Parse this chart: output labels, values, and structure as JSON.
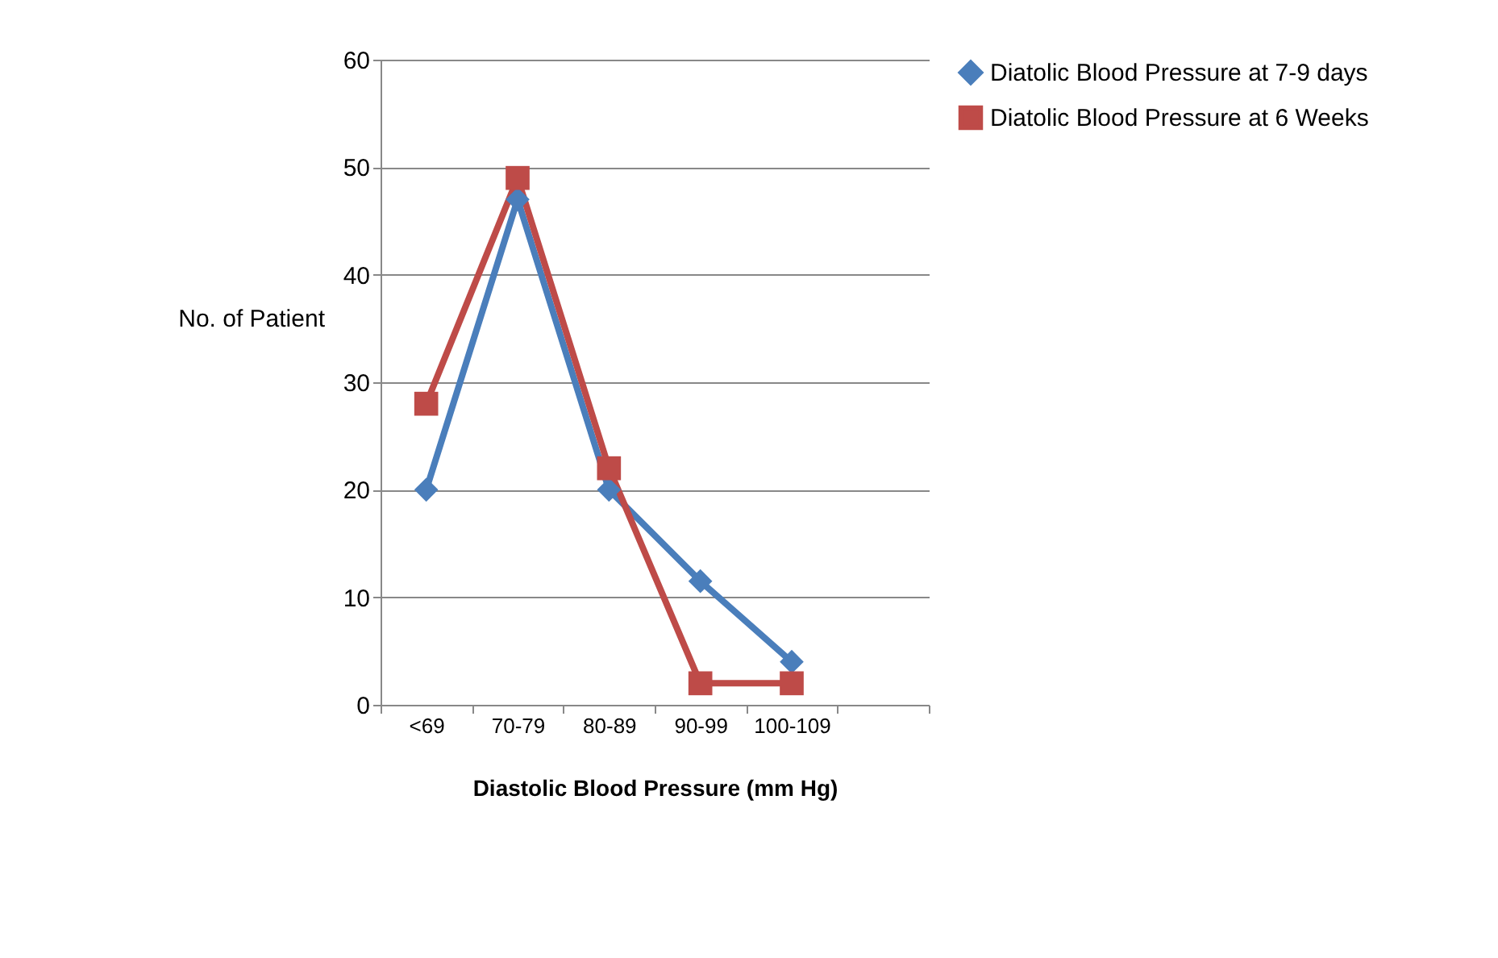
{
  "chart_data": {
    "type": "line",
    "xlabel": "Diastolic Blood Pressure (mm Hg)",
    "ylabel": "No. of Patient",
    "categories": [
      "<69",
      "70-79",
      "80-89",
      "90-99",
      "100-109",
      null
    ],
    "series": [
      {
        "name": "Diatolic Blood Pressure at 7-9 days",
        "color": "#4a7ebb",
        "marker": "diamond",
        "values": [
          20,
          47,
          20,
          11.5,
          4,
          null
        ]
      },
      {
        "name": "Diatolic Blood Pressure at 6 Weeks",
        "color": "#be4b48",
        "marker": "square",
        "values": [
          28,
          49,
          22,
          2,
          2,
          null
        ]
      }
    ],
    "ylim": [
      0,
      60
    ],
    "yticks": [
      0,
      10,
      20,
      30,
      40,
      50,
      60
    ],
    "grid": "y",
    "legend": "right",
    "line_style": "solid"
  }
}
